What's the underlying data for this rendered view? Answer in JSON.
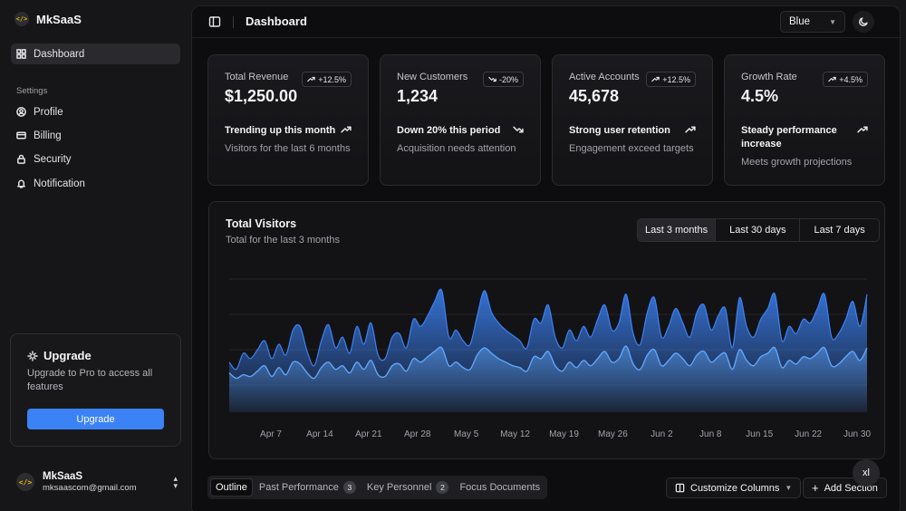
{
  "app": {
    "name": "MkSaaS"
  },
  "sidebar": {
    "items": [
      {
        "label": "Dashboard",
        "icon": "dashboard-icon"
      }
    ],
    "section_label": "Settings",
    "settings_items": [
      {
        "label": "Profile",
        "icon": "user-circle-icon"
      },
      {
        "label": "Billing",
        "icon": "credit-card-icon"
      },
      {
        "label": "Security",
        "icon": "lock-icon"
      },
      {
        "label": "Notification",
        "icon": "bell-icon"
      }
    ],
    "upgrade": {
      "title": "Upgrade",
      "text": "Upgrade to Pro to access all features",
      "button": "Upgrade"
    },
    "user": {
      "name": "MkSaaS",
      "email": "mksaascom@gmail.com"
    }
  },
  "header": {
    "title": "Dashboard",
    "theme_value": "Blue"
  },
  "stats": [
    {
      "label": "Total Revenue",
      "badge": "+12.5%",
      "value": "$1,250.00",
      "trend": "Trending up this month",
      "sub": "Visitors for the last 6 months",
      "dir": "up"
    },
    {
      "label": "New Customers",
      "badge": "-20%",
      "value": "1,234",
      "trend": "Down 20% this period",
      "sub": "Acquisition needs attention",
      "dir": "down"
    },
    {
      "label": "Active Accounts",
      "badge": "+12.5%",
      "value": "45,678",
      "trend": "Strong user retention",
      "sub": "Engagement exceed targets",
      "dir": "up"
    },
    {
      "label": "Growth Rate",
      "badge": "+4.5%",
      "value": "4.5%",
      "trend": "Steady performance increase",
      "sub": "Meets growth projections",
      "dir": "up"
    }
  ],
  "visitors": {
    "title": "Total Visitors",
    "subtitle": "Total for the last 3 months",
    "ranges": [
      "Last 3 months",
      "Last 30 days",
      "Last 7 days"
    ],
    "active_range": "Last 3 months"
  },
  "chart_data": {
    "type": "area",
    "title": "Total Visitors",
    "subtitle": "Total for the last 3 months",
    "x_tick_labels": [
      "Apr 7",
      "Apr 14",
      "Apr 21",
      "Apr 28",
      "May 5",
      "May 12",
      "May 19",
      "May 26",
      "Jun 2",
      "Jun 8",
      "Jun 15",
      "Jun 22",
      "Jun 30"
    ],
    "grid": "horizontal",
    "colors": {
      "series_a": "#3b82f6",
      "series_b": "#60a5fa"
    },
    "series": [
      {
        "values": [
          140,
          120,
          165,
          150,
          175,
          200,
          150,
          190,
          160,
          230,
          240,
          170,
          130,
          200,
          245,
          180,
          210,
          165,
          240,
          190,
          250,
          160,
          150,
          210,
          220,
          180,
          260,
          240,
          270,
          310,
          340,
          210,
          230,
          200,
          190,
          270,
          340,
          280,
          250,
          230,
          215,
          200,
          180,
          260,
          250,
          300,
          210,
          180,
          230,
          200,
          240,
          210,
          260,
          300,
          230,
          250,
          330,
          220,
          190,
          280,
          320,
          210,
          240,
          290,
          250,
          210,
          280,
          300,
          230,
          270,
          290,
          180,
          320,
          240,
          210,
          260,
          290,
          330,
          200,
          240,
          220,
          260,
          250,
          290,
          330,
          210,
          220,
          260,
          310,
          240,
          330
        ]
      },
      {
        "values": [
          110,
          95,
          105,
          100,
          115,
          130,
          100,
          125,
          105,
          140,
          135,
          110,
          95,
          125,
          140,
          120,
          130,
          110,
          140,
          120,
          145,
          105,
          100,
          130,
          135,
          115,
          150,
          140,
          155,
          170,
          180,
          130,
          140,
          125,
          120,
          160,
          180,
          165,
          150,
          140,
          130,
          125,
          115,
          155,
          150,
          170,
          130,
          115,
          140,
          125,
          145,
          130,
          150,
          170,
          140,
          150,
          185,
          135,
          120,
          160,
          175,
          130,
          145,
          165,
          150,
          130,
          160,
          170,
          140,
          155,
          165,
          120,
          175,
          145,
          130,
          155,
          165,
          180,
          125,
          145,
          135,
          155,
          150,
          165,
          180,
          130,
          135,
          155,
          170,
          145,
          180
        ]
      }
    ]
  },
  "tabs": [
    {
      "label": "Outline",
      "count": ""
    },
    {
      "label": "Past Performance",
      "count": "3"
    },
    {
      "label": "Key Personnel",
      "count": "2"
    },
    {
      "label": "Focus Documents",
      "count": ""
    }
  ],
  "toolbar": {
    "customize": "Customize Columns",
    "add_section": "Add Section"
  },
  "floating": {
    "label": "xl"
  }
}
